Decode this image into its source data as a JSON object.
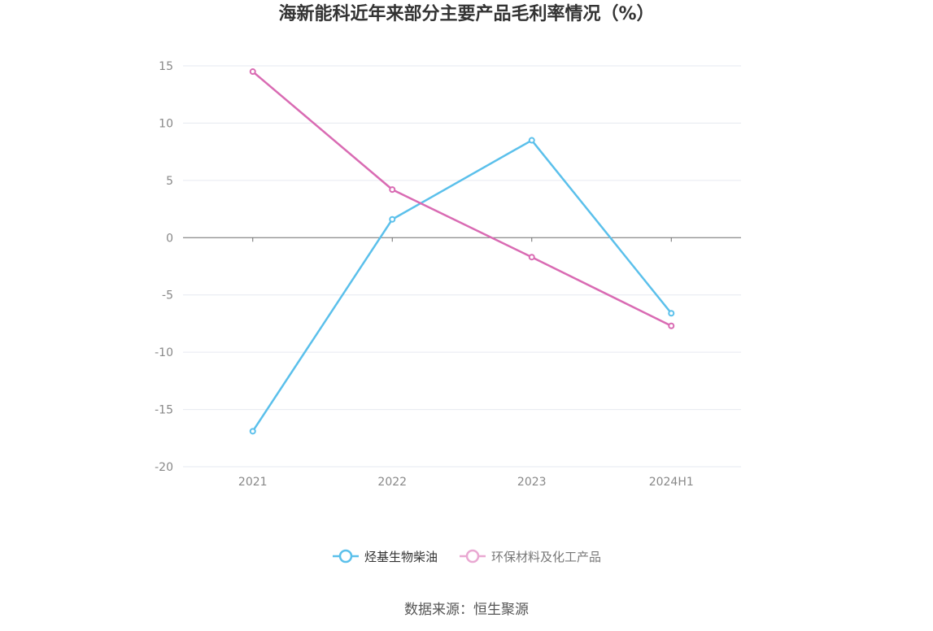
{
  "page": {
    "title": "海新能科近年来部分主要产品毛利率情况（%）",
    "source": "数据来源：恒生聚源"
  },
  "colors": {
    "series_1": "#5BC0EB",
    "series_2": "#D96BB3",
    "grid": "#E6E9F0",
    "zero_axis": "#6E6E6E",
    "tick_label": "#888888"
  },
  "chart_data": {
    "type": "line",
    "categories": [
      "2021",
      "2022",
      "2023",
      "2024H1"
    ],
    "series": [
      {
        "name": "烃基生物柴油",
        "values": [
          -16.9,
          1.6,
          8.5,
          -6.6
        ]
      },
      {
        "name": "环保材料及化工产品",
        "values": [
          14.5,
          4.2,
          -1.7,
          -7.7
        ]
      }
    ],
    "ylim": [
      -20,
      15
    ],
    "yticks": [
      "15",
      "10",
      "5",
      "0",
      "-5",
      "-10",
      "-15",
      "-20"
    ],
    "grid": true,
    "legend_position": "bottom"
  }
}
